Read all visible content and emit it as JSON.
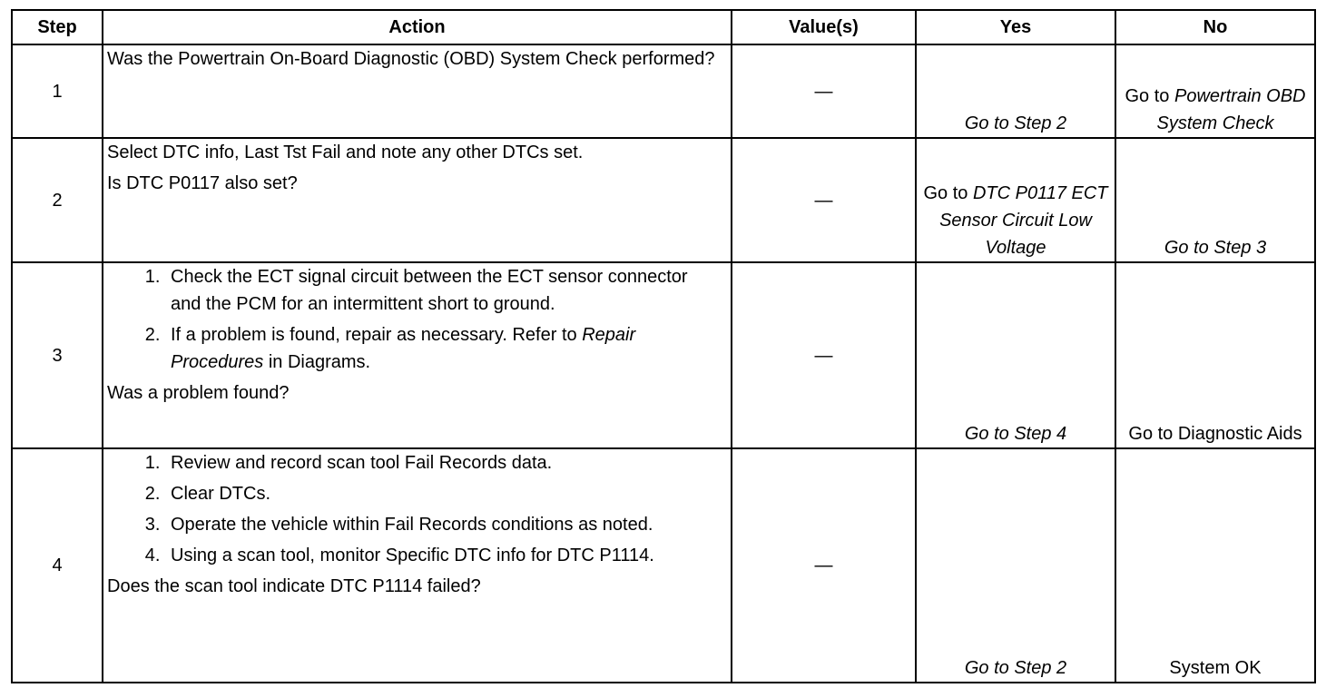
{
  "headers": [
    "Step",
    "Action",
    "Value(s)",
    "Yes",
    "No"
  ],
  "rows": [
    {
      "step": "1",
      "action_lines": [
        "Was the Powertrain On-Board Diagnostic (OBD) System Check performed?"
      ],
      "value": "—",
      "yes": {
        "prefix": "",
        "italic": "Go to Step 2"
      },
      "no": {
        "prefix": "Go to ",
        "italic": "Powertrain OBD System Check"
      }
    },
    {
      "step": "2",
      "action_lines": [
        "Select DTC info, Last Tst Fail and note any other DTCs set.",
        "Is DTC P0117 also set?"
      ],
      "value": "—",
      "yes": {
        "prefix": "Go to ",
        "italic": "DTC P0117 ECT Sensor Circuit Low Voltage"
      },
      "no": {
        "prefix": "",
        "italic": "Go to Step 3"
      }
    },
    {
      "step": "3",
      "action_items": [
        "Check the ECT signal circuit between the ECT sensor connector and the PCM for an intermittent short to ground.",
        {
          "before": "If a problem is found, repair as necessary. Refer to ",
          "italic": "Repair Procedures",
          "after": " in Diagrams."
        }
      ],
      "question": "Was a problem found?",
      "value": "—",
      "yes": {
        "prefix": "",
        "italic": "Go to Step 4"
      },
      "no": {
        "prefix": "Go to Diagnostic Aids",
        "italic": ""
      }
    },
    {
      "step": "4",
      "action_items": [
        "Review and record scan tool Fail Records data.",
        "Clear DTCs.",
        "Operate the vehicle within Fail Records conditions as noted.",
        "Using a scan tool, monitor Specific DTC info for DTC P1114."
      ],
      "question": "Does the scan tool indicate DTC P1114 failed?",
      "value": "—",
      "yes": {
        "prefix": "",
        "italic": "Go to Step 2"
      },
      "no": {
        "prefix": "System OK",
        "italic": ""
      }
    }
  ]
}
